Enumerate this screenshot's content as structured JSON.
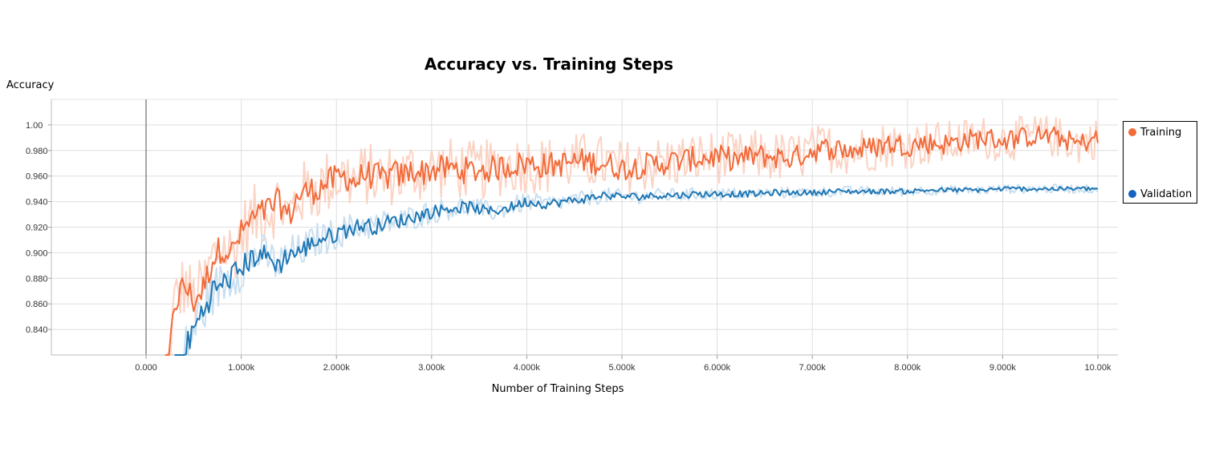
{
  "chart_data": {
    "type": "line",
    "title": "Accuracy vs. Training Steps",
    "xlabel": "Number of Training Steps",
    "ylabel": "Accuracy",
    "xlim": [
      -1000,
      10200
    ],
    "ylim": [
      0.82,
      1.02
    ],
    "x_ticks": [
      0,
      1000,
      2000,
      3000,
      4000,
      5000,
      6000,
      7000,
      8000,
      9000,
      10000
    ],
    "x_tick_labels": [
      "0.000",
      "1.000k",
      "2.000k",
      "3.000k",
      "4.000k",
      "5.000k",
      "6.000k",
      "7.000k",
      "8.000k",
      "9.000k",
      "10.00k"
    ],
    "y_ticks": [
      0.84,
      0.86,
      0.88,
      0.9,
      0.92,
      0.94,
      0.96,
      0.98,
      1.0
    ],
    "y_tick_labels": [
      "0.840",
      "0.860",
      "0.880",
      "0.900",
      "0.920",
      "0.940",
      "0.960",
      "0.980",
      "1.00"
    ],
    "grid": true,
    "legend_position": "right",
    "series": [
      {
        "name": "Training",
        "color": "#f26b3a",
        "raw_color": "#fbd3c4",
        "x": [
          200,
          300,
          400,
          500,
          600,
          700,
          800,
          900,
          1000,
          1100,
          1200,
          1300,
          1400,
          1500,
          1600,
          1700,
          1800,
          1900,
          2000,
          2100,
          2200,
          2300,
          2400,
          2500,
          2600,
          2700,
          2800,
          2900,
          3000,
          3200,
          3400,
          3600,
          3800,
          4000,
          4200,
          4400,
          4600,
          4800,
          5000,
          5200,
          5400,
          5600,
          5800,
          6000,
          6200,
          6400,
          6600,
          6800,
          7000,
          7200,
          7400,
          7600,
          7800,
          8000,
          8200,
          8400,
          8600,
          8800,
          9000,
          9200,
          9400,
          9600,
          9800,
          10000
        ],
        "values": [
          0.78,
          0.86,
          0.875,
          0.862,
          0.872,
          0.895,
          0.905,
          0.9,
          0.915,
          0.925,
          0.93,
          0.935,
          0.94,
          0.928,
          0.945,
          0.948,
          0.95,
          0.955,
          0.958,
          0.96,
          0.955,
          0.962,
          0.96,
          0.958,
          0.962,
          0.96,
          0.965,
          0.963,
          0.965,
          0.966,
          0.964,
          0.965,
          0.968,
          0.97,
          0.968,
          0.97,
          0.972,
          0.97,
          0.966,
          0.968,
          0.97,
          0.972,
          0.974,
          0.975,
          0.973,
          0.976,
          0.975,
          0.974,
          0.98,
          0.982,
          0.98,
          0.982,
          0.985,
          0.984,
          0.986,
          0.985,
          0.988,
          0.99,
          0.988,
          0.99,
          0.992,
          0.99,
          0.985,
          0.99
        ]
      },
      {
        "name": "Validation",
        "color": "#1f77b4",
        "raw_color": "#c9dff0",
        "x": [
          300,
          400,
          500,
          600,
          700,
          800,
          900,
          1000,
          1100,
          1200,
          1300,
          1400,
          1500,
          1600,
          1700,
          1800,
          1900,
          2000,
          2100,
          2200,
          2300,
          2400,
          2500,
          2600,
          2700,
          2800,
          2900,
          3000,
          3200,
          3400,
          3600,
          3800,
          4000,
          4200,
          4400,
          4600,
          4800,
          5000,
          5200,
          5400,
          5600,
          5800,
          6000,
          6200,
          6400,
          6600,
          6800,
          7000,
          7200,
          7400,
          7600,
          7800,
          8000,
          8200,
          8400,
          8600,
          8800,
          9000,
          9200,
          9400,
          9600,
          9800,
          10000
        ],
        "values": [
          0.8,
          0.82,
          0.84,
          0.855,
          0.87,
          0.875,
          0.882,
          0.888,
          0.895,
          0.9,
          0.895,
          0.89,
          0.9,
          0.9,
          0.905,
          0.91,
          0.912,
          0.915,
          0.918,
          0.92,
          0.922,
          0.92,
          0.923,
          0.925,
          0.925,
          0.928,
          0.93,
          0.932,
          0.935,
          0.936,
          0.932,
          0.935,
          0.94,
          0.938,
          0.94,
          0.942,
          0.945,
          0.944,
          0.944,
          0.945,
          0.945,
          0.946,
          0.946,
          0.946,
          0.946,
          0.947,
          0.947,
          0.947,
          0.948,
          0.948,
          0.948,
          0.948,
          0.948,
          0.949,
          0.949,
          0.949,
          0.949,
          0.95,
          0.95,
          0.95,
          0.95,
          0.95,
          0.95
        ]
      }
    ]
  }
}
